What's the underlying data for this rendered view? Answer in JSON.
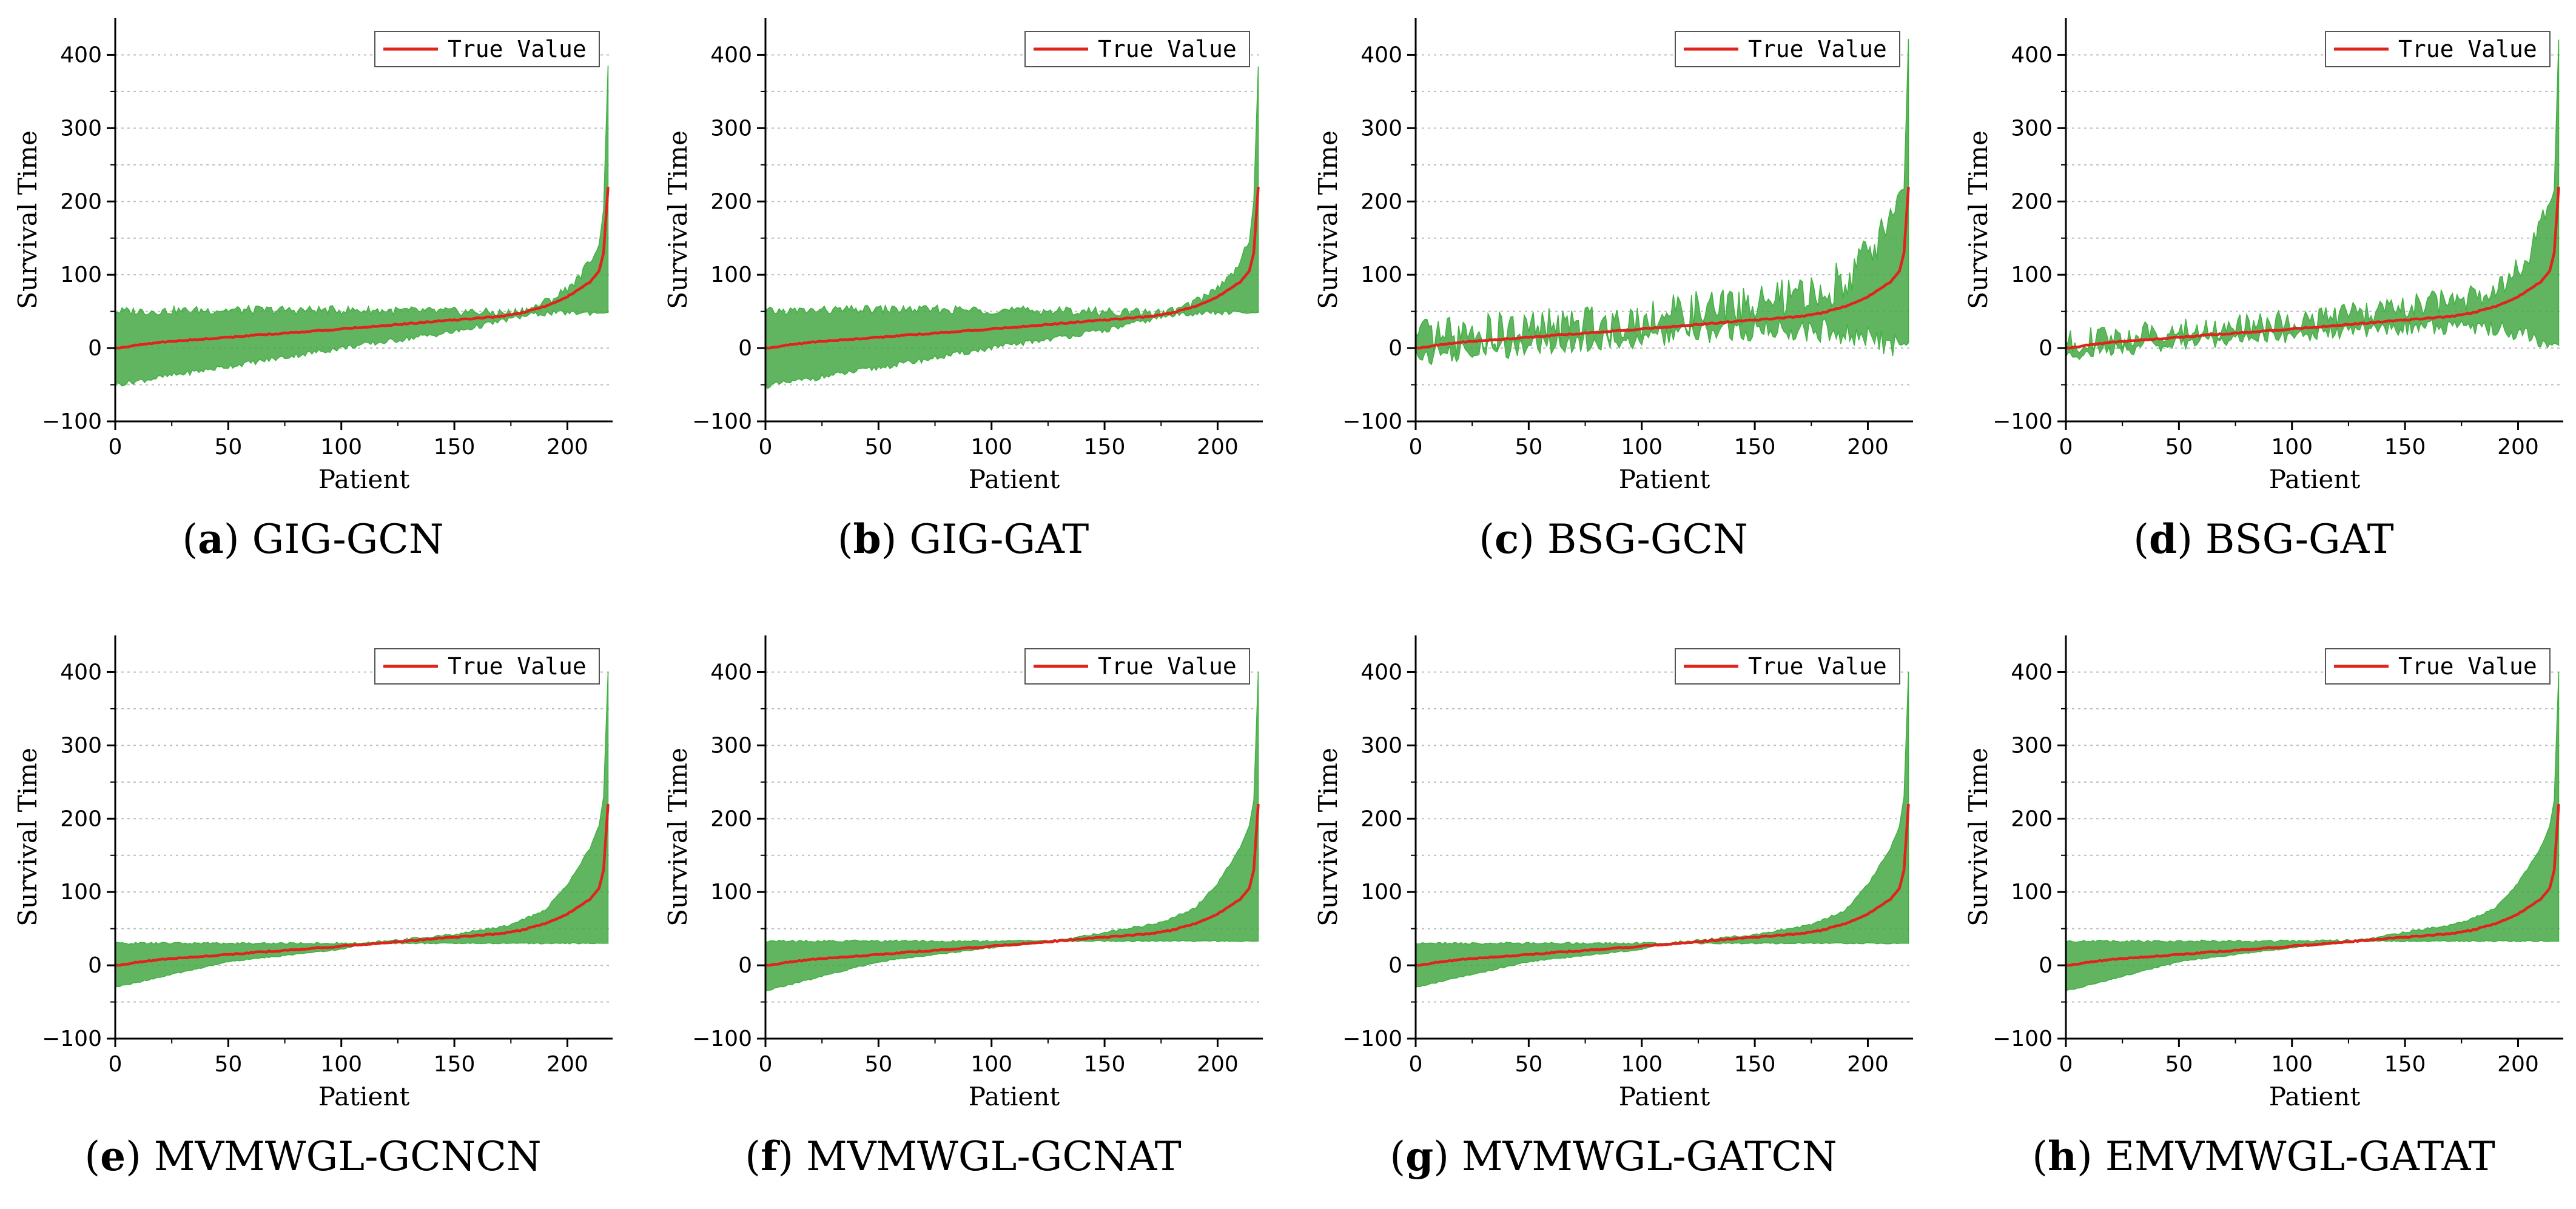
{
  "figure": {
    "panels_count": 8
  },
  "chart_data": [
    {
      "id": "a",
      "type": "area",
      "caption_letter": "a",
      "caption_title": "GIG-GCN",
      "xlabel": "Patient",
      "ylabel": "Survival Time",
      "xlim": [
        0,
        220
      ],
      "ylim": [
        -100,
        450
      ],
      "xticks": [
        "0",
        "50",
        "100",
        "150",
        "200"
      ],
      "yticks": [
        "−100",
        "0",
        "100",
        "200",
        "300",
        "400"
      ],
      "legend": {
        "label": "True Value",
        "position": "top-right"
      },
      "series": [
        {
          "name": "True Value",
          "color": "#e0231c",
          "x": [
            0,
            20,
            60,
            100,
            140,
            170,
            180,
            190,
            200,
            205,
            210,
            214,
            216,
            218
          ],
          "y": [
            0,
            8,
            17,
            26,
            36,
            43,
            48,
            57,
            70,
            80,
            90,
            105,
            130,
            220
          ]
        },
        {
          "name": "band_upper",
          "color": "#45a845",
          "x": [
            0,
            50,
            100,
            150,
            175,
            185,
            195,
            205,
            210,
            214,
            216,
            218
          ],
          "y": [
            50,
            52,
            52,
            50,
            48,
            55,
            70,
            95,
            120,
            140,
            190,
            385
          ]
        },
        {
          "name": "band_lower",
          "color": "#45a845",
          "x": [
            0,
            50,
            100,
            150,
            175,
            185,
            195,
            205,
            210,
            214,
            216,
            218
          ],
          "y": [
            -50,
            -25,
            0,
            22,
            40,
            46,
            48,
            48,
            48,
            48,
            48,
            48
          ]
        }
      ],
      "band_noise": 6
    },
    {
      "id": "b",
      "type": "area",
      "caption_letter": "b",
      "caption_title": "GIG-GAT",
      "xlabel": "Patient",
      "ylabel": "Survival Time",
      "xlim": [
        0,
        220
      ],
      "ylim": [
        -100,
        450
      ],
      "xticks": [
        "0",
        "50",
        "100",
        "150",
        "200"
      ],
      "yticks": [
        "−100",
        "0",
        "100",
        "200",
        "300",
        "400"
      ],
      "legend": {
        "label": "True Value",
        "position": "top-right"
      },
      "series": [
        {
          "name": "True Value",
          "color": "#e0231c",
          "x": [
            0,
            20,
            60,
            100,
            140,
            170,
            180,
            190,
            200,
            205,
            210,
            214,
            216,
            218
          ],
          "y": [
            0,
            8,
            17,
            26,
            36,
            43,
            48,
            57,
            70,
            80,
            90,
            105,
            130,
            220
          ]
        },
        {
          "name": "band_upper",
          "color": "#45a845",
          "x": [
            0,
            50,
            100,
            150,
            175,
            185,
            195,
            205,
            210,
            214,
            216,
            218
          ],
          "y": [
            50,
            53,
            52,
            50,
            48,
            55,
            72,
            95,
            120,
            145,
            200,
            385
          ]
        },
        {
          "name": "band_lower",
          "color": "#45a845",
          "x": [
            0,
            50,
            100,
            150,
            175,
            185,
            195,
            205,
            210,
            214,
            216,
            218
          ],
          "y": [
            -52,
            -27,
            0,
            24,
            42,
            47,
            48,
            48,
            48,
            48,
            48,
            48
          ]
        }
      ],
      "band_noise": 6
    },
    {
      "id": "c",
      "type": "area",
      "caption_letter": "c",
      "caption_title": "BSG-GCN",
      "xlabel": "Patient",
      "ylabel": "Survival Time",
      "xlim": [
        0,
        220
      ],
      "ylim": [
        -100,
        450
      ],
      "xticks": [
        "0",
        "50",
        "100",
        "150",
        "200"
      ],
      "yticks": [
        "−100",
        "0",
        "100",
        "200",
        "300",
        "400"
      ],
      "legend": {
        "label": "True Value",
        "position": "top-right"
      },
      "series": [
        {
          "name": "True Value",
          "color": "#e0231c",
          "x": [
            0,
            20,
            60,
            100,
            140,
            170,
            180,
            190,
            200,
            205,
            210,
            214,
            216,
            218
          ],
          "y": [
            0,
            8,
            17,
            26,
            36,
            43,
            48,
            57,
            70,
            80,
            90,
            105,
            130,
            220
          ]
        },
        {
          "name": "band_upper",
          "color": "#45a845",
          "x": [
            0,
            50,
            100,
            150,
            180,
            195,
            205,
            212,
            216,
            218
          ],
          "y": [
            10,
            25,
            40,
            60,
            75,
            110,
            150,
            200,
            220,
            420
          ]
        },
        {
          "name": "band_lower",
          "color": "#45a845",
          "x": [
            0,
            50,
            100,
            150,
            180,
            195,
            205,
            212,
            216,
            218
          ],
          "y": [
            -10,
            5,
            15,
            25,
            25,
            15,
            10,
            5,
            5,
            5
          ]
        }
      ],
      "band_noise": 28
    },
    {
      "id": "d",
      "type": "area",
      "caption_letter": "d",
      "caption_title": "BSG-GAT",
      "xlabel": "Patient",
      "ylabel": "Survival Time",
      "xlim": [
        0,
        220
      ],
      "ylim": [
        -100,
        450
      ],
      "xticks": [
        "0",
        "50",
        "100",
        "150",
        "200"
      ],
      "yticks": [
        "−100",
        "0",
        "100",
        "200",
        "300",
        "400"
      ],
      "legend": {
        "label": "True Value",
        "position": "top-right"
      },
      "series": [
        {
          "name": "True Value",
          "color": "#e0231c",
          "x": [
            0,
            20,
            60,
            100,
            140,
            170,
            180,
            190,
            200,
            205,
            210,
            214,
            216,
            218
          ],
          "y": [
            0,
            8,
            17,
            26,
            36,
            43,
            48,
            57,
            70,
            80,
            90,
            105,
            130,
            220
          ]
        },
        {
          "name": "band_upper",
          "color": "#45a845",
          "x": [
            0,
            50,
            100,
            150,
            180,
            195,
            205,
            212,
            216,
            218
          ],
          "y": [
            8,
            22,
            35,
            55,
            70,
            95,
            125,
            180,
            215,
            420
          ]
        },
        {
          "name": "band_lower",
          "color": "#45a845",
          "x": [
            0,
            50,
            100,
            150,
            180,
            195,
            205,
            212,
            216,
            218
          ],
          "y": [
            -8,
            8,
            18,
            28,
            30,
            25,
            15,
            8,
            5,
            5
          ]
        }
      ],
      "band_noise": 18
    },
    {
      "id": "e",
      "type": "area",
      "caption_letter": "e",
      "caption_title": "MVMWGL-GCNCN",
      "xlabel": "Patient",
      "ylabel": "Survival Time",
      "xlim": [
        0,
        220
      ],
      "ylim": [
        -100,
        450
      ],
      "xticks": [
        "0",
        "50",
        "100",
        "150",
        "200"
      ],
      "yticks": [
        "−100",
        "0",
        "100",
        "200",
        "300",
        "400"
      ],
      "legend": {
        "label": "True Value",
        "position": "top-right"
      },
      "series": [
        {
          "name": "True Value",
          "color": "#e0231c",
          "x": [
            0,
            20,
            60,
            100,
            140,
            170,
            180,
            190,
            200,
            205,
            210,
            214,
            216,
            218
          ],
          "y": [
            0,
            8,
            17,
            26,
            36,
            43,
            48,
            57,
            70,
            80,
            90,
            105,
            130,
            220
          ]
        },
        {
          "name": "band_upper",
          "color": "#45a845",
          "x": [
            0,
            50,
            100,
            110,
            150,
            175,
            190,
            200,
            210,
            214,
            216,
            218
          ],
          "y": [
            30,
            30,
            30,
            30,
            42,
            55,
            75,
            110,
            160,
            190,
            230,
            400
          ]
        },
        {
          "name": "band_lower",
          "color": "#45a845",
          "x": [
            0,
            50,
            100,
            110,
            150,
            175,
            190,
            200,
            210,
            214,
            216,
            218
          ],
          "y": [
            -30,
            5,
            22,
            30,
            30,
            30,
            30,
            30,
            30,
            30,
            30,
            30
          ]
        }
      ],
      "band_noise": 1.5
    },
    {
      "id": "f",
      "type": "area",
      "caption_letter": "f",
      "caption_title": "MVMWGL-GCNAT",
      "xlabel": "Patient",
      "ylabel": "Survival Time",
      "xlim": [
        0,
        220
      ],
      "ylim": [
        -100,
        450
      ],
      "xticks": [
        "0",
        "50",
        "100",
        "150",
        "200"
      ],
      "yticks": [
        "−100",
        "0",
        "100",
        "200",
        "300",
        "400"
      ],
      "legend": {
        "label": "True Value",
        "position": "top-right"
      },
      "series": [
        {
          "name": "True Value",
          "color": "#e0231c",
          "x": [
            0,
            20,
            60,
            100,
            140,
            170,
            180,
            190,
            200,
            205,
            210,
            214,
            216,
            218
          ],
          "y": [
            0,
            8,
            17,
            26,
            36,
            43,
            48,
            57,
            70,
            80,
            90,
            105,
            130,
            220
          ]
        },
        {
          "name": "band_upper",
          "color": "#45a845",
          "x": [
            0,
            50,
            100,
            130,
            150,
            175,
            190,
            200,
            210,
            214,
            216,
            218
          ],
          "y": [
            33,
            33,
            33,
            34,
            45,
            58,
            78,
            112,
            160,
            190,
            225,
            400
          ]
        },
        {
          "name": "band_lower",
          "color": "#45a845",
          "x": [
            0,
            50,
            100,
            130,
            150,
            175,
            190,
            200,
            210,
            214,
            216,
            218
          ],
          "y": [
            -35,
            5,
            24,
            33,
            33,
            33,
            33,
            33,
            33,
            33,
            33,
            33
          ]
        }
      ],
      "band_noise": 1.5
    },
    {
      "id": "g",
      "type": "area",
      "caption_letter": "g",
      "caption_title": "MVMWGL-GATCN",
      "xlabel": "Patient",
      "ylabel": "Survival Time",
      "xlim": [
        0,
        220
      ],
      "ylim": [
        -100,
        450
      ],
      "xticks": [
        "0",
        "50",
        "100",
        "150",
        "200"
      ],
      "yticks": [
        "−100",
        "0",
        "100",
        "200",
        "300",
        "400"
      ],
      "legend": {
        "label": "True Value",
        "position": "top-right"
      },
      "series": [
        {
          "name": "True Value",
          "color": "#e0231c",
          "x": [
            0,
            20,
            60,
            100,
            140,
            170,
            180,
            190,
            200,
            205,
            210,
            214,
            216,
            218
          ],
          "y": [
            0,
            8,
            17,
            26,
            36,
            43,
            48,
            57,
            70,
            80,
            90,
            105,
            130,
            220
          ]
        },
        {
          "name": "band_upper",
          "color": "#45a845",
          "x": [
            0,
            50,
            100,
            110,
            150,
            175,
            190,
            200,
            210,
            214,
            216,
            218
          ],
          "y": [
            30,
            30,
            30,
            30,
            42,
            55,
            75,
            110,
            160,
            190,
            230,
            400
          ]
        },
        {
          "name": "band_lower",
          "color": "#45a845",
          "x": [
            0,
            50,
            100,
            110,
            150,
            175,
            190,
            200,
            210,
            214,
            216,
            218
          ],
          "y": [
            -30,
            5,
            22,
            30,
            30,
            30,
            30,
            30,
            30,
            30,
            30,
            30
          ]
        }
      ],
      "band_noise": 1.5
    },
    {
      "id": "h",
      "type": "area",
      "caption_letter": "h",
      "caption_title": "EMVMWGL-GATAT",
      "xlabel": "Patient",
      "ylabel": "Survival Time",
      "xlim": [
        0,
        220
      ],
      "ylim": [
        -100,
        450
      ],
      "xticks": [
        "0",
        "50",
        "100",
        "150",
        "200"
      ],
      "yticks": [
        "−100",
        "0",
        "100",
        "200",
        "300",
        "400"
      ],
      "legend": {
        "label": "True Value",
        "position": "top-right"
      },
      "series": [
        {
          "name": "True Value",
          "color": "#e0231c",
          "x": [
            0,
            20,
            60,
            100,
            140,
            170,
            180,
            190,
            200,
            205,
            210,
            214,
            216,
            218
          ],
          "y": [
            0,
            8,
            17,
            26,
            36,
            43,
            48,
            57,
            70,
            80,
            90,
            105,
            130,
            220
          ]
        },
        {
          "name": "band_upper",
          "color": "#45a845",
          "x": [
            0,
            50,
            100,
            130,
            150,
            175,
            190,
            200,
            210,
            214,
            216,
            218
          ],
          "y": [
            33,
            33,
            33,
            34,
            45,
            58,
            78,
            112,
            160,
            190,
            225,
            400
          ]
        },
        {
          "name": "band_lower",
          "color": "#45a845",
          "x": [
            0,
            50,
            100,
            130,
            150,
            175,
            190,
            200,
            210,
            214,
            216,
            218
          ],
          "y": [
            -35,
            5,
            24,
            33,
            33,
            33,
            33,
            33,
            33,
            33,
            33,
            33
          ]
        }
      ],
      "band_noise": 1.5
    }
  ]
}
